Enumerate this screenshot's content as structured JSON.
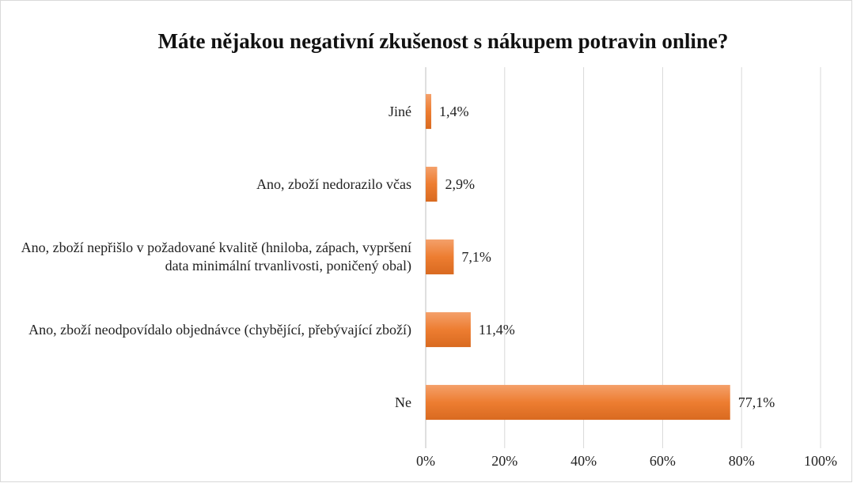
{
  "chart_data": {
    "type": "bar",
    "orientation": "horizontal",
    "title": "Máte nějakou negativní zkušenost s nákupem potravin online?",
    "categories": [
      "Jiné",
      "Ano, zboží nedorazilo včas",
      "Ano, zboží nepřišlo v požadované kvalitě (hniloba, zápach, vypršení data minimální trvanlivosti, poničený obal)",
      "Ano, zboží neodpovídalo objednávce (chybějící, přebývající zboží)",
      "Ne"
    ],
    "values": [
      1.4,
      2.9,
      7.1,
      11.4,
      77.1
    ],
    "value_labels": [
      "1,4%",
      "2,9%",
      "7,1%",
      "11,4%",
      "77,1%"
    ],
    "color": "#ed7d31",
    "xlim": [
      0,
      100
    ],
    "xticks": [
      {
        "value": 0,
        "label": "0%"
      },
      {
        "value": 20,
        "label": "20%"
      },
      {
        "value": 40,
        "label": "40%"
      },
      {
        "value": 60,
        "label": "60%"
      },
      {
        "value": 80,
        "label": "80%"
      },
      {
        "value": 100,
        "label": "100%"
      }
    ],
    "grid": true
  }
}
